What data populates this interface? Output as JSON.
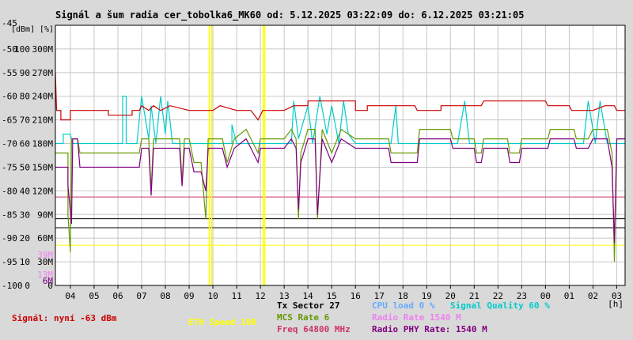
{
  "title": "Signál a šum radia cer_tobolka6_MK60 od: 5.12.2025 03:22:09 do: 6.12.2025 03:21:05",
  "colors": {
    "background": "#d9d9d9",
    "plot_bg": "#ffffff",
    "grid": "#c8c8c8",
    "signal": "#cc0000",
    "signal_quality": "#00cccc",
    "mcs": "#669900",
    "radio_phy": "#800080",
    "radio_rate": "#ee82ee",
    "freq": "#cc3366",
    "eth": "#ffff00",
    "cpu": "#66aaff",
    "black": "#000000"
  },
  "chart_data": {
    "type": "line",
    "title": "Signál a šum radia cer_tobolka6_MK60 od: 5.12.2025 03:22:09 do: 6.12.2025 03:21:05",
    "y_units_labels": [
      "[dBm]",
      "[%]"
    ],
    "ylim_dbm": [
      -100,
      -45
    ],
    "y_ticks": [
      {
        "dbm": "-45",
        "pct": "",
        "rate": ""
      },
      {
        "dbm": "-50",
        "pct": "100",
        "rate": "300M"
      },
      {
        "dbm": "-55",
        "pct": "90",
        "rate": "270M"
      },
      {
        "dbm": "-60",
        "pct": "80",
        "rate": "240M"
      },
      {
        "dbm": "-65",
        "pct": "70",
        "rate": "210M"
      },
      {
        "dbm": "-70",
        "pct": "60",
        "rate": "180M"
      },
      {
        "dbm": "-75",
        "pct": "50",
        "rate": "150M"
      },
      {
        "dbm": "-80",
        "pct": "40",
        "rate": "120M"
      },
      {
        "dbm": "-85",
        "pct": "30",
        "rate": "90M"
      },
      {
        "dbm": "-90",
        "pct": "20",
        "rate": "60M"
      },
      {
        "dbm": "-95",
        "pct": "10",
        "rate": "30M"
      },
      {
        "dbm": "-100",
        "pct": "0",
        "rate": "0"
      }
    ],
    "extra_axis_labels": [
      {
        "text": "39M",
        "dbm": -93.5,
        "color_key": "radio_rate"
      },
      {
        "text": "13M",
        "dbm": -97.7,
        "color_key": "radio_rate"
      },
      {
        "text": "6M",
        "dbm": -99,
        "color_key": "radio_phy"
      }
    ],
    "x_tick_labels": [
      "04",
      "05",
      "06",
      "07",
      "08",
      "09",
      "10",
      "11",
      "12",
      "13",
      "14",
      "15",
      "16",
      "17",
      "18",
      "19",
      "20",
      "21",
      "22",
      "23",
      "00",
      "01",
      "02",
      "03"
    ],
    "x_unit_label": "[h]",
    "x_range_hours": [
      3.369,
      27.351
    ],
    "vertical_markers": [
      {
        "hour": 9.85,
        "color_key": "eth"
      },
      {
        "hour": 9.95,
        "color_key": "eth"
      },
      {
        "hour": 12.12,
        "color_key": "eth"
      },
      {
        "hour": 12.18,
        "color_key": "eth"
      }
    ],
    "horizontal_lines": [
      {
        "dbm": -81.3,
        "color_key": "freq"
      },
      {
        "dbm": -85.9,
        "color_key": "black"
      },
      {
        "dbm": -87.8,
        "color_key": "black"
      },
      {
        "dbm": -91.5,
        "color_key": "eth"
      }
    ],
    "series": [
      {
        "name": "Signál",
        "color_key": "signal",
        "points": [
          [
            3.37,
            -55
          ],
          [
            3.42,
            -63
          ],
          [
            3.6,
            -63
          ],
          [
            3.6,
            -65
          ],
          [
            4.0,
            -65
          ],
          [
            4.0,
            -63
          ],
          [
            5.6,
            -63
          ],
          [
            5.6,
            -64
          ],
          [
            6.6,
            -64
          ],
          [
            6.6,
            -63
          ],
          [
            6.9,
            -63
          ],
          [
            7.0,
            -62
          ],
          [
            7.3,
            -63
          ],
          [
            7.5,
            -62
          ],
          [
            7.8,
            -63
          ],
          [
            8.2,
            -62
          ],
          [
            9.0,
            -63
          ],
          [
            10.0,
            -63
          ],
          [
            10.3,
            -62
          ],
          [
            11.0,
            -63
          ],
          [
            11.6,
            -63
          ],
          [
            11.9,
            -65
          ],
          [
            12.1,
            -63
          ],
          [
            12.5,
            -63
          ],
          [
            13.0,
            -63
          ],
          [
            13.4,
            -62
          ],
          [
            14.0,
            -62
          ],
          [
            14.0,
            -61
          ],
          [
            16.0,
            -61
          ],
          [
            16.0,
            -63
          ],
          [
            16.5,
            -63
          ],
          [
            16.5,
            -62
          ],
          [
            18.5,
            -62
          ],
          [
            18.6,
            -63
          ],
          [
            19.6,
            -63
          ],
          [
            19.6,
            -62
          ],
          [
            21.3,
            -62
          ],
          [
            21.4,
            -61
          ],
          [
            24.0,
            -61
          ],
          [
            24.1,
            -62
          ],
          [
            25.0,
            -62
          ],
          [
            25.1,
            -63
          ],
          [
            26.0,
            -63
          ],
          [
            26.5,
            -62
          ],
          [
            26.9,
            -62
          ],
          [
            27.0,
            -63
          ],
          [
            27.35,
            -63
          ]
        ]
      },
      {
        "name": "Signal Quality 60 %",
        "color_key": "signal_quality",
        "points": [
          [
            3.37,
            -70
          ],
          [
            3.7,
            -70
          ],
          [
            3.7,
            -68
          ],
          [
            4.0,
            -68
          ],
          [
            4.1,
            -70
          ],
          [
            6.2,
            -70
          ],
          [
            6.2,
            -60
          ],
          [
            6.35,
            -60
          ],
          [
            6.35,
            -70
          ],
          [
            6.8,
            -70
          ],
          [
            7.0,
            -60
          ],
          [
            7.3,
            -69
          ],
          [
            7.4,
            -62
          ],
          [
            7.6,
            -70
          ],
          [
            7.8,
            -60
          ],
          [
            8.0,
            -68
          ],
          [
            8.1,
            -61
          ],
          [
            8.3,
            -70
          ],
          [
            10.8,
            -70
          ],
          [
            10.8,
            -66
          ],
          [
            11.0,
            -70
          ],
          [
            13.3,
            -70
          ],
          [
            13.4,
            -61
          ],
          [
            13.6,
            -69
          ],
          [
            14.0,
            -62
          ],
          [
            14.2,
            -70
          ],
          [
            14.5,
            -60
          ],
          [
            14.8,
            -68
          ],
          [
            15.0,
            -62
          ],
          [
            15.3,
            -70
          ],
          [
            15.5,
            -61
          ],
          [
            15.7,
            -68
          ],
          [
            16.0,
            -70
          ],
          [
            17.5,
            -70
          ],
          [
            17.7,
            -62
          ],
          [
            17.8,
            -70
          ],
          [
            20.3,
            -70
          ],
          [
            20.6,
            -61
          ],
          [
            20.8,
            -70
          ],
          [
            25.6,
            -70
          ],
          [
            25.8,
            -61
          ],
          [
            26.1,
            -70
          ],
          [
            26.3,
            -61
          ],
          [
            26.6,
            -70
          ],
          [
            27.35,
            -70
          ]
        ]
      },
      {
        "name": "MCS Rate 6",
        "color_key": "mcs",
        "points": [
          [
            3.37,
            -72
          ],
          [
            3.9,
            -72
          ],
          [
            3.9,
            -85
          ],
          [
            4.0,
            -93
          ],
          [
            4.05,
            -69
          ],
          [
            4.3,
            -69
          ],
          [
            4.4,
            -72
          ],
          [
            6.9,
            -72
          ],
          [
            7.0,
            -69
          ],
          [
            7.3,
            -69
          ],
          [
            7.4,
            -80
          ],
          [
            7.5,
            -69
          ],
          [
            8.6,
            -69
          ],
          [
            8.7,
            -78
          ],
          [
            8.8,
            -69
          ],
          [
            9.0,
            -69
          ],
          [
            9.2,
            -74
          ],
          [
            9.5,
            -74
          ],
          [
            9.7,
            -86
          ],
          [
            9.8,
            -69
          ],
          [
            10.4,
            -69
          ],
          [
            10.6,
            -74
          ],
          [
            10.9,
            -69
          ],
          [
            11.4,
            -67
          ],
          [
            11.6,
            -69
          ],
          [
            11.9,
            -72
          ],
          [
            12.0,
            -69
          ],
          [
            13.0,
            -69
          ],
          [
            13.3,
            -67
          ],
          [
            13.5,
            -69
          ],
          [
            13.6,
            -86
          ],
          [
            13.7,
            -72
          ],
          [
            14.0,
            -67
          ],
          [
            14.3,
            -67
          ],
          [
            14.4,
            -86
          ],
          [
            14.6,
            -67
          ],
          [
            15.0,
            -72
          ],
          [
            15.4,
            -67
          ],
          [
            16.0,
            -69
          ],
          [
            17.4,
            -69
          ],
          [
            17.5,
            -72
          ],
          [
            18.6,
            -72
          ],
          [
            18.7,
            -67
          ],
          [
            20.0,
            -67
          ],
          [
            20.1,
            -69
          ],
          [
            21.0,
            -69
          ],
          [
            21.1,
            -72
          ],
          [
            21.3,
            -72
          ],
          [
            21.4,
            -69
          ],
          [
            22.4,
            -69
          ],
          [
            22.5,
            -72
          ],
          [
            22.9,
            -72
          ],
          [
            23.0,
            -69
          ],
          [
            24.1,
            -69
          ],
          [
            24.2,
            -67
          ],
          [
            25.2,
            -67
          ],
          [
            25.3,
            -69
          ],
          [
            25.8,
            -69
          ],
          [
            26.0,
            -67
          ],
          [
            26.6,
            -67
          ],
          [
            26.8,
            -72
          ],
          [
            26.9,
            -95
          ],
          [
            27.0,
            -69
          ],
          [
            27.35,
            -69
          ]
        ]
      },
      {
        "name": "Radio PHY Rate: 1540 M",
        "color_key": "radio_phy",
        "points": [
          [
            3.37,
            -75
          ],
          [
            3.9,
            -75
          ],
          [
            3.9,
            -79
          ],
          [
            4.05,
            -87
          ],
          [
            4.1,
            -69
          ],
          [
            4.3,
            -69
          ],
          [
            4.4,
            -75
          ],
          [
            6.9,
            -75
          ],
          [
            7.0,
            -71
          ],
          [
            7.3,
            -71
          ],
          [
            7.4,
            -81
          ],
          [
            7.5,
            -71
          ],
          [
            8.6,
            -71
          ],
          [
            8.7,
            -79
          ],
          [
            8.8,
            -71
          ],
          [
            9.0,
            -71
          ],
          [
            9.2,
            -76
          ],
          [
            9.5,
            -76
          ],
          [
            9.7,
            -80
          ],
          [
            9.8,
            -71
          ],
          [
            10.4,
            -71
          ],
          [
            10.6,
            -75
          ],
          [
            10.9,
            -71
          ],
          [
            11.4,
            -69
          ],
          [
            11.6,
            -71
          ],
          [
            11.9,
            -74
          ],
          [
            12.0,
            -71
          ],
          [
            13.0,
            -71
          ],
          [
            13.3,
            -69
          ],
          [
            13.5,
            -71
          ],
          [
            13.6,
            -84
          ],
          [
            13.7,
            -74
          ],
          [
            14.0,
            -69
          ],
          [
            14.3,
            -69
          ],
          [
            14.4,
            -85
          ],
          [
            14.6,
            -69
          ],
          [
            15.0,
            -74
          ],
          [
            15.4,
            -69
          ],
          [
            16.0,
            -71
          ],
          [
            17.4,
            -71
          ],
          [
            17.5,
            -74
          ],
          [
            18.6,
            -74
          ],
          [
            18.7,
            -69
          ],
          [
            20.0,
            -69
          ],
          [
            20.1,
            -71
          ],
          [
            21.0,
            -71
          ],
          [
            21.1,
            -74
          ],
          [
            21.3,
            -74
          ],
          [
            21.4,
            -71
          ],
          [
            22.4,
            -71
          ],
          [
            22.5,
            -74
          ],
          [
            22.9,
            -74
          ],
          [
            23.0,
            -71
          ],
          [
            24.1,
            -71
          ],
          [
            24.2,
            -69
          ],
          [
            25.2,
            -69
          ],
          [
            25.3,
            -71
          ],
          [
            25.8,
            -71
          ],
          [
            26.0,
            -69
          ],
          [
            26.6,
            -69
          ],
          [
            26.8,
            -75
          ],
          [
            26.9,
            -91
          ],
          [
            27.0,
            -69
          ],
          [
            27.35,
            -69
          ]
        ]
      }
    ],
    "legend": [
      {
        "text": "Tx Sector 27",
        "color_key": "black"
      },
      {
        "text": "CPU load 0 %",
        "color_key": "cpu"
      },
      {
        "text": "Signal Quality 60 %",
        "color_key": "signal_quality"
      },
      {
        "text": "MCS Rate 6",
        "color_key": "mcs"
      },
      {
        "text": "Radio Rate 1540 M",
        "color_key": "radio_rate"
      },
      {
        "text": "Freq 64800 MHz",
        "color_key": "freq"
      },
      {
        "text": "Radio PHY Rate: 1540 M",
        "color_key": "radio_phy"
      },
      {
        "text": "Signál: nyní -63 dBm",
        "color_key": "signal"
      },
      {
        "text": "ETH Speed 100",
        "color_key": "eth"
      }
    ]
  }
}
